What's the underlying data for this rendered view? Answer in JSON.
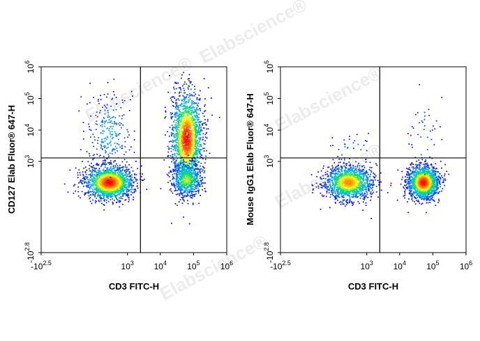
{
  "watermark": "Elabscience®",
  "chart_data": [
    {
      "type": "scatter",
      "subtype": "flow-cytometry-density-plot",
      "xlabel": "CD3 FITC-H",
      "ylabel": "CD127 Elab Fluor® 647-H",
      "x_scale": "biexponential",
      "y_scale": "biexponential",
      "xlim": [
        -316,
        1000000
      ],
      "ylim": [
        -631,
        1000000
      ],
      "x_ticks": [
        {
          "value": -316,
          "base": "-10",
          "exp": "2.5"
        },
        {
          "value": 1000,
          "base": "10",
          "exp": "3"
        },
        {
          "value": 10000,
          "base": "10",
          "exp": "4"
        },
        {
          "value": 100000,
          "base": "10",
          "exp": "5"
        },
        {
          "value": 1000000,
          "base": "10",
          "exp": "6"
        }
      ],
      "y_ticks": [
        {
          "value": -631,
          "base": "-10",
          "exp": "2.8"
        },
        {
          "value": 1000,
          "base": "10",
          "exp": "3"
        },
        {
          "value": 10000,
          "base": "10",
          "exp": "4"
        },
        {
          "value": 100000,
          "base": "10",
          "exp": "5"
        },
        {
          "value": 1000000,
          "base": "10",
          "exp": "6"
        }
      ],
      "gates": {
        "x": 2500,
        "y": 1300
      },
      "color_scale": [
        "#0000ff",
        "#00b0ff",
        "#00e060",
        "#ffff00",
        "#ff8000",
        "#ff0000"
      ],
      "populations": [
        {
          "cx": 250,
          "cy": 200,
          "count": 1700,
          "peak": 1.0
        },
        {
          "cx": 60000,
          "cy": 5500,
          "count": 1900,
          "peak": 1.0
        },
        {
          "cx": 60000,
          "cy": 250,
          "count": 600,
          "peak": 0.55
        },
        {
          "cx": 250,
          "cy": 8000,
          "count": 260,
          "peak": 0.2
        }
      ]
    },
    {
      "type": "scatter",
      "subtype": "flow-cytometry-density-plot",
      "xlabel": "CD3 FITC-H",
      "ylabel": "Mouse IgG1 Elab Fluor® 647-H",
      "x_scale": "biexponential",
      "y_scale": "biexponential",
      "xlim": [
        -316,
        1000000
      ],
      "ylim": [
        -631,
        1000000
      ],
      "x_ticks": [
        {
          "value": -316,
          "base": "-10",
          "exp": "2.5"
        },
        {
          "value": 1000,
          "base": "10",
          "exp": "3"
        },
        {
          "value": 10000,
          "base": "10",
          "exp": "4"
        },
        {
          "value": 100000,
          "base": "10",
          "exp": "5"
        },
        {
          "value": 1000000,
          "base": "10",
          "exp": "6"
        }
      ],
      "y_ticks": [
        {
          "value": -631,
          "base": "-10",
          "exp": "2.8"
        },
        {
          "value": 1000,
          "base": "10",
          "exp": "3"
        },
        {
          "value": 10000,
          "base": "10",
          "exp": "4"
        },
        {
          "value": 100000,
          "base": "10",
          "exp": "5"
        },
        {
          "value": 1000000,
          "base": "10",
          "exp": "6"
        }
      ],
      "gates": {
        "x": 2500,
        "y": 1300
      },
      "color_scale": [
        "#0000ff",
        "#00b0ff",
        "#00e060",
        "#ffff00",
        "#ff8000",
        "#ff0000"
      ],
      "populations": [
        {
          "cx": 250,
          "cy": 200,
          "count": 1500,
          "peak": 0.8
        },
        {
          "cx": 50000,
          "cy": 200,
          "count": 1600,
          "peak": 1.0
        },
        {
          "cx": 50000,
          "cy": 6000,
          "count": 45,
          "peak": 0.1
        },
        {
          "cx": 250,
          "cy": 3000,
          "count": 30,
          "peak": 0.1
        }
      ]
    }
  ]
}
